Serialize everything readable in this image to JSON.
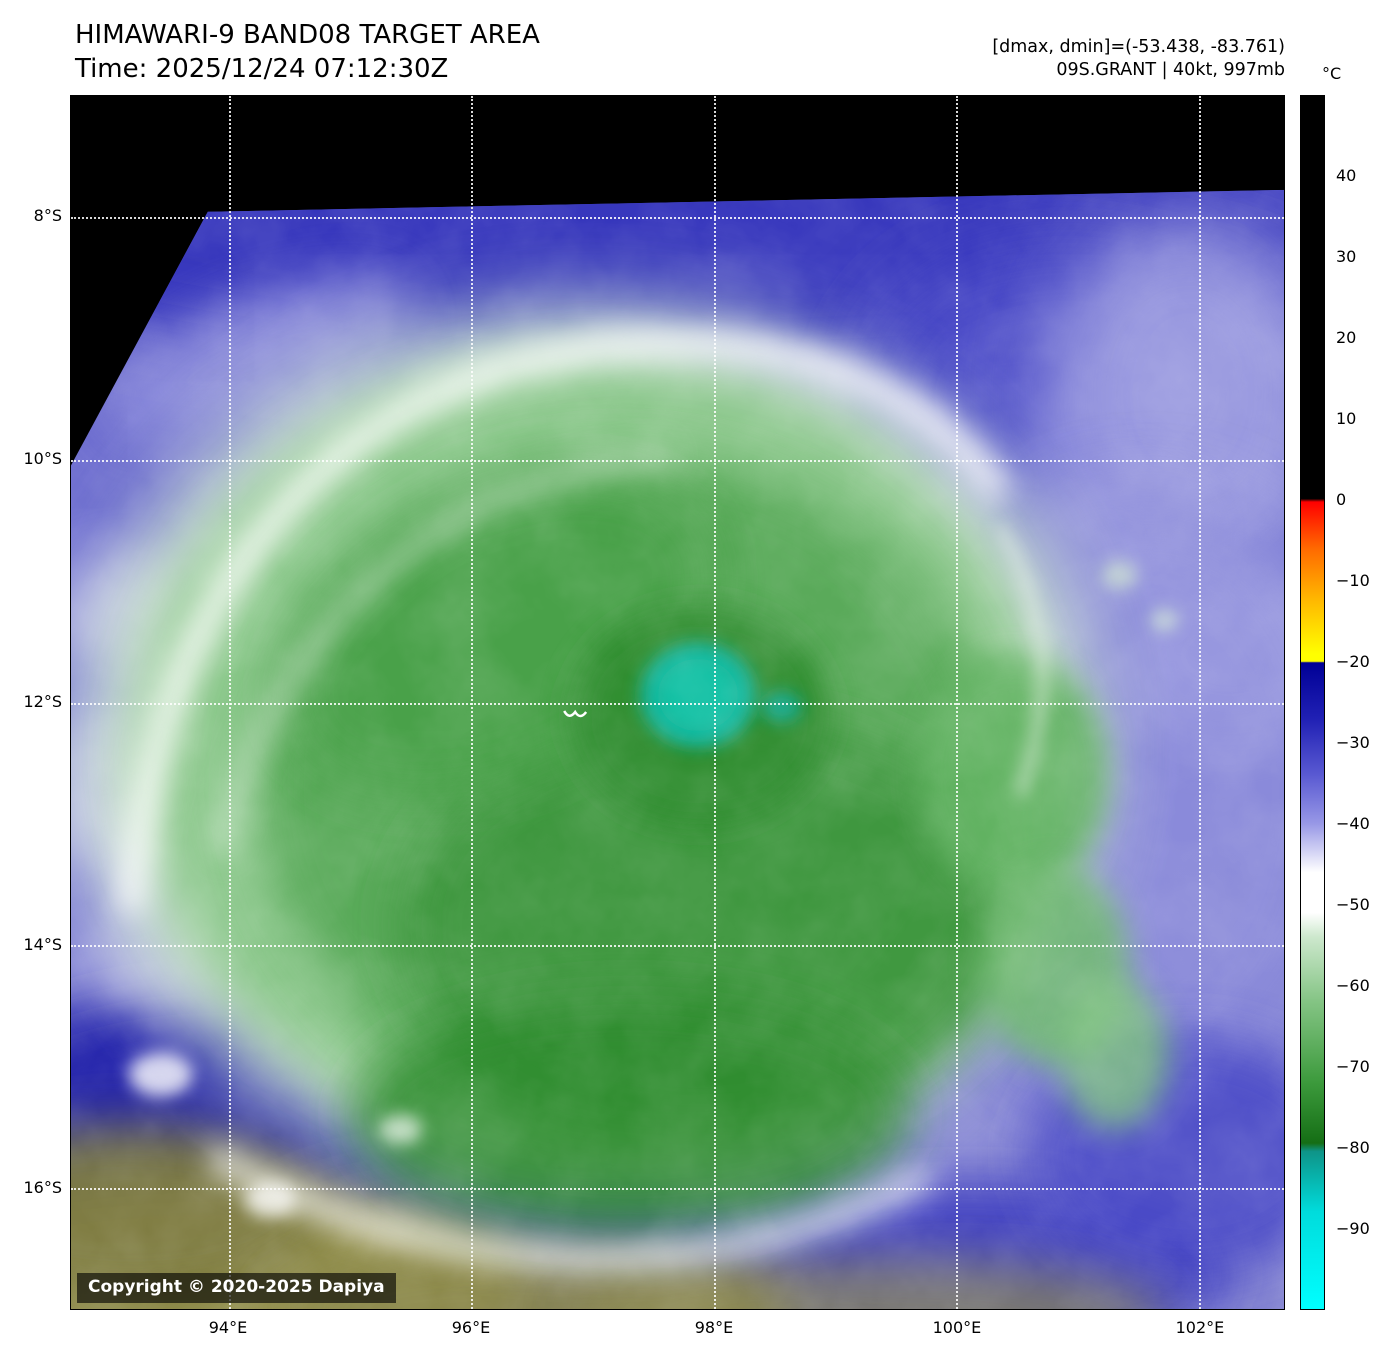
{
  "header": {
    "title": "HIMAWARI-9 BAND08 TARGET AREA",
    "time": "Time: 2025/12/24 07:12:30Z",
    "dmax_dmin": "[dmax, dmin]=(-53.438, -83.761)",
    "storm_info": "09S.GRANT | 40kt, 997mb"
  },
  "map": {
    "copyright": "Copyright © 2020-2025 Dapiya"
  },
  "axes": {
    "lat": {
      "min": 7.0,
      "max": 17.0,
      "ticks": [
        {
          "v": 8,
          "label": "8°S"
        },
        {
          "v": 10,
          "label": "10°S"
        },
        {
          "v": 12,
          "label": "12°S"
        },
        {
          "v": 14,
          "label": "14°S"
        },
        {
          "v": 16,
          "label": "16°S"
        }
      ]
    },
    "lon": {
      "min": 92.7,
      "max": 102.7,
      "ticks": [
        {
          "v": 94,
          "label": "94°E"
        },
        {
          "v": 96,
          "label": "96°E"
        },
        {
          "v": 98,
          "label": "98°E"
        },
        {
          "v": 100,
          "label": "100°E"
        },
        {
          "v": 102,
          "label": "102°E"
        }
      ]
    }
  },
  "colorbar": {
    "unit": "°C",
    "vmax": 50,
    "vmin": -100,
    "ticks": [
      {
        "v": 40,
        "label": "40"
      },
      {
        "v": 30,
        "label": "30"
      },
      {
        "v": 20,
        "label": "20"
      },
      {
        "v": 10,
        "label": "10"
      },
      {
        "v": 0,
        "label": "0"
      },
      {
        "v": -10,
        "label": "−10"
      },
      {
        "v": -20,
        "label": "−20"
      },
      {
        "v": -30,
        "label": "−30"
      },
      {
        "v": -40,
        "label": "−40"
      },
      {
        "v": -50,
        "label": "−50"
      },
      {
        "v": -60,
        "label": "−60"
      },
      {
        "v": -70,
        "label": "−70"
      },
      {
        "v": -80,
        "label": "−80"
      },
      {
        "v": -90,
        "label": "−90"
      }
    ],
    "stops": [
      {
        "v": 50,
        "color": "#000000"
      },
      {
        "v": 0.2,
        "color": "#000000"
      },
      {
        "v": -0.2,
        "color": "#ff0000"
      },
      {
        "v": -6,
        "color": "#ff6a00"
      },
      {
        "v": -12,
        "color": "#ffb400"
      },
      {
        "v": -19,
        "color": "#ffff00"
      },
      {
        "v": -19.9,
        "color": "#ffff00"
      },
      {
        "v": -20.1,
        "color": "#000096"
      },
      {
        "v": -27,
        "color": "#2020b4"
      },
      {
        "v": -34,
        "color": "#5a5ad2"
      },
      {
        "v": -40,
        "color": "#9898e6"
      },
      {
        "v": -46,
        "color": "#ffffff"
      },
      {
        "v": -51,
        "color": "#ffffff"
      },
      {
        "v": -54,
        "color": "#cde8cd"
      },
      {
        "v": -62,
        "color": "#84c484"
      },
      {
        "v": -72,
        "color": "#3c9a3c"
      },
      {
        "v": -79.5,
        "color": "#156e15"
      },
      {
        "v": -80.5,
        "color": "#0e9488"
      },
      {
        "v": -88,
        "color": "#00dcdc"
      },
      {
        "v": -100,
        "color": "#00ffff"
      }
    ]
  }
}
